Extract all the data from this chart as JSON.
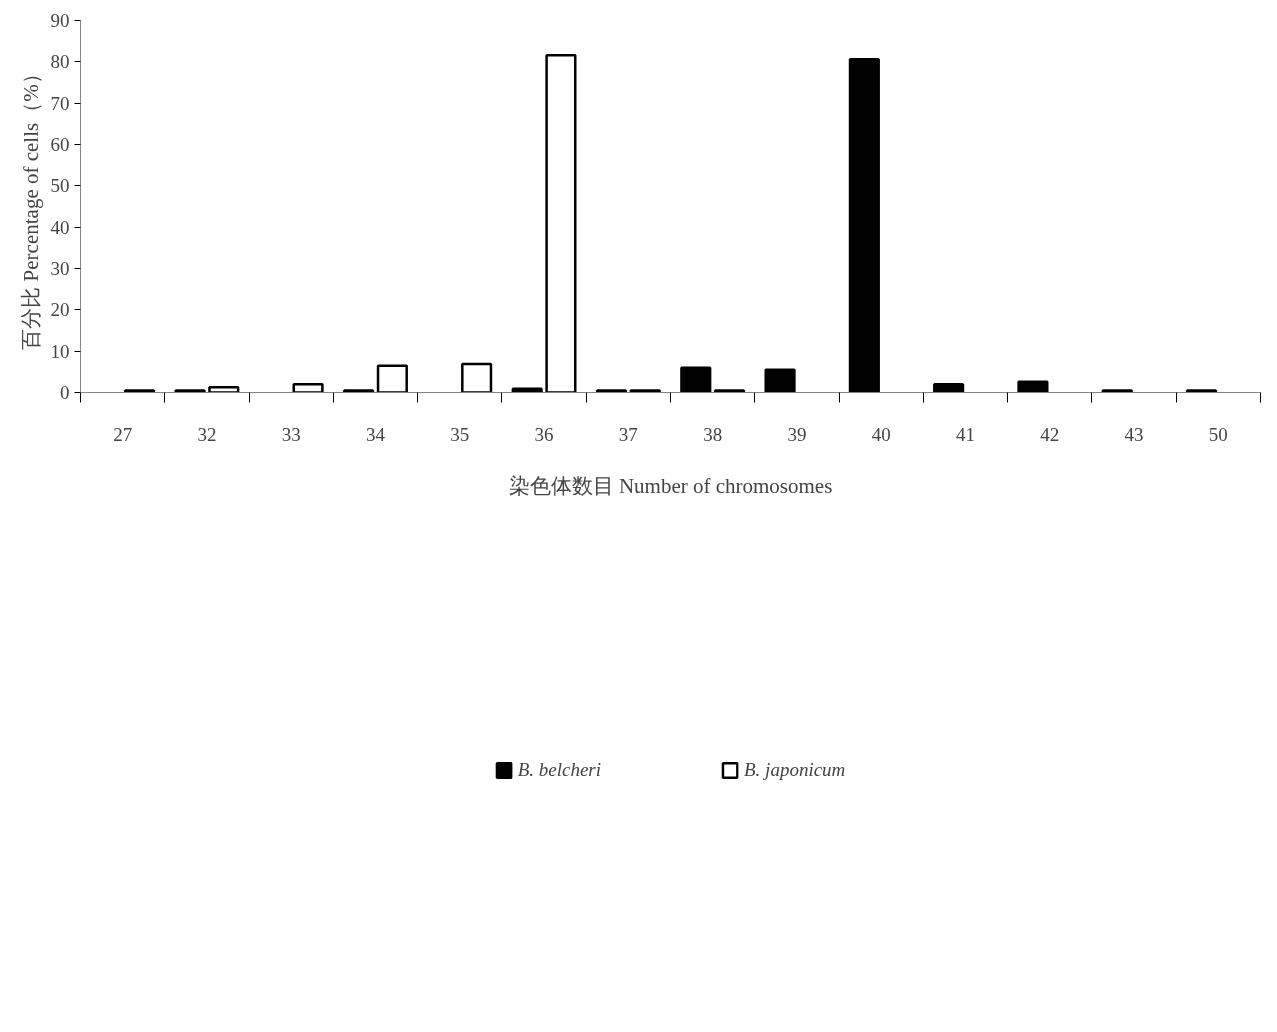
{
  "chart_data": {
    "type": "bar",
    "xlabel": "染色体数目 Number of chromosomes",
    "ylabel": "百分比 Percentage of cells（%）",
    "categories": [
      "27",
      "32",
      "33",
      "34",
      "35",
      "36",
      "37",
      "38",
      "39",
      "40",
      "41",
      "42",
      "43",
      "50"
    ],
    "series": [
      {
        "name": "B. belcheri",
        "color": "#000000",
        "values": [
          null,
          0.5,
          null,
          0.5,
          null,
          0.9,
          0.5,
          6.0,
          5.5,
          80.6,
          2.0,
          2.6,
          0.5,
          0.5
        ]
      },
      {
        "name": "B. japonicum",
        "color": "#ffffff",
        "values": [
          0.5,
          1.3,
          2.0,
          6.5,
          6.9,
          81.6,
          0.5,
          0.5,
          null,
          null,
          null,
          null,
          null,
          null
        ]
      }
    ],
    "ylim": [
      0,
      90
    ],
    "yticks": [
      0,
      10,
      20,
      30,
      40,
      50,
      60,
      70,
      80,
      90
    ],
    "grid": false,
    "legend": "bottom"
  }
}
